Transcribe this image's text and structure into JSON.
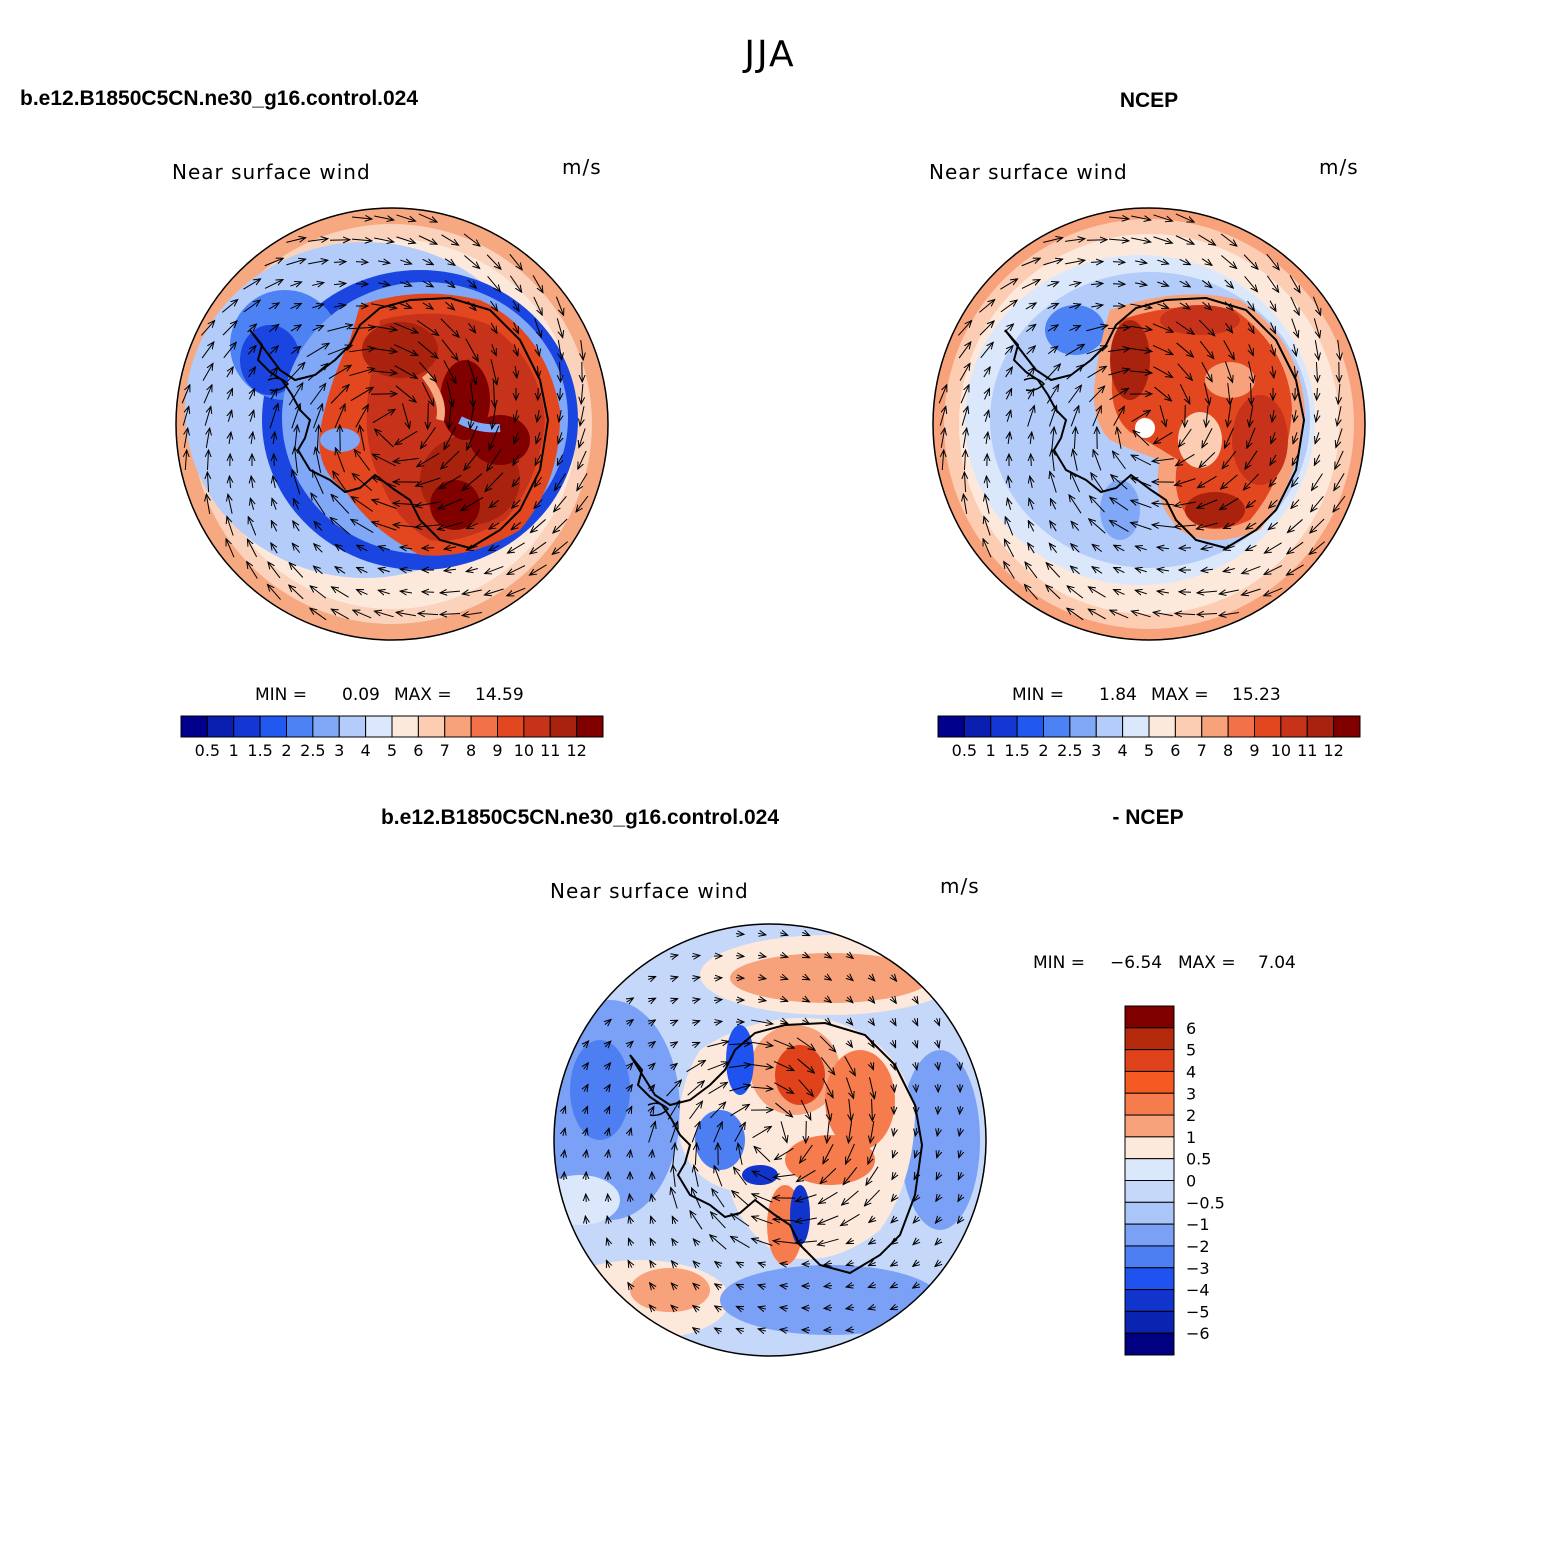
{
  "page_title": "JJA",
  "panels": [
    {
      "model": "b.e12.B1850C5CN.ne30_g16.control.024",
      "title": "Near surface wind",
      "units": "m/s",
      "min": "0.09",
      "max": "14.59",
      "min_label": "MIN =",
      "max_label": "MAX ="
    },
    {
      "model": "NCEP",
      "title": "Near surface wind",
      "units": "m/s",
      "min": "1.84",
      "max": "15.23",
      "min_label": "MIN =",
      "max_label": "MAX ="
    },
    {
      "model": "b.e12.B1850C5CN.ne30_g16.control.024",
      "model_suffix": "- NCEP",
      "title": "Near surface wind",
      "units": "m/s",
      "min": "−6.54",
      "max": "7.04",
      "min_label": "MIN =",
      "max_label": "MAX ="
    }
  ],
  "abs_scale": {
    "labels": [
      "0.5",
      "1",
      "1.5",
      "2",
      "2.5",
      "3",
      "4",
      "5",
      "6",
      "7",
      "8",
      "9",
      "10",
      "11",
      "12"
    ],
    "colors": [
      "#00008c",
      "#0a1fb0",
      "#1436d4",
      "#2158f0",
      "#4d82f5",
      "#80a8f7",
      "#b3ccf9",
      "#dbe8fb",
      "#fde9dc",
      "#fcccb3",
      "#f8a27b",
      "#f27148",
      "#e2471f",
      "#c6331a",
      "#a8220e",
      "#800000"
    ]
  },
  "diff_scale": {
    "labels": [
      "6",
      "5",
      "4",
      "3",
      "2",
      "1",
      "0.5",
      "0",
      "−0.5",
      "−1",
      "−2",
      "−3",
      "−4",
      "−5",
      "−6"
    ],
    "colors": [
      "#800000",
      "#b52a0c",
      "#e0431b",
      "#f55a22",
      "#f67c4d",
      "#f8a27b",
      "#fde9dc",
      "#dbe8fb",
      "#c5d8fa",
      "#aac5f8",
      "#7aa1f5",
      "#4d7ff2",
      "#1f53f0",
      "#1134cc",
      "#0a23b0",
      "#000080"
    ]
  },
  "chart_data": [
    {
      "type": "heatmap",
      "projection": "south polar stereographic",
      "title": "Near surface wind",
      "units": "m/s",
      "min": 0.09,
      "max": 14.59,
      "levels": [
        0.5,
        1,
        1.5,
        2,
        2.5,
        3,
        4,
        5,
        6,
        7,
        8,
        9,
        10,
        11,
        12
      ]
    },
    {
      "type": "heatmap",
      "projection": "south polar stereographic",
      "title": "Near surface wind",
      "units": "m/s",
      "min": 1.84,
      "max": 15.23,
      "levels": [
        0.5,
        1,
        1.5,
        2,
        2.5,
        3,
        4,
        5,
        6,
        7,
        8,
        9,
        10,
        11,
        12
      ]
    },
    {
      "type": "heatmap",
      "projection": "south polar stereographic",
      "title": "Near surface wind",
      "units": "m/s",
      "min": -6.54,
      "max": 7.04,
      "levels": [
        -6,
        -5,
        -4,
        -3,
        -2,
        -1,
        -0.5,
        0,
        0.5,
        1,
        2,
        3,
        4,
        5,
        6
      ]
    }
  ]
}
